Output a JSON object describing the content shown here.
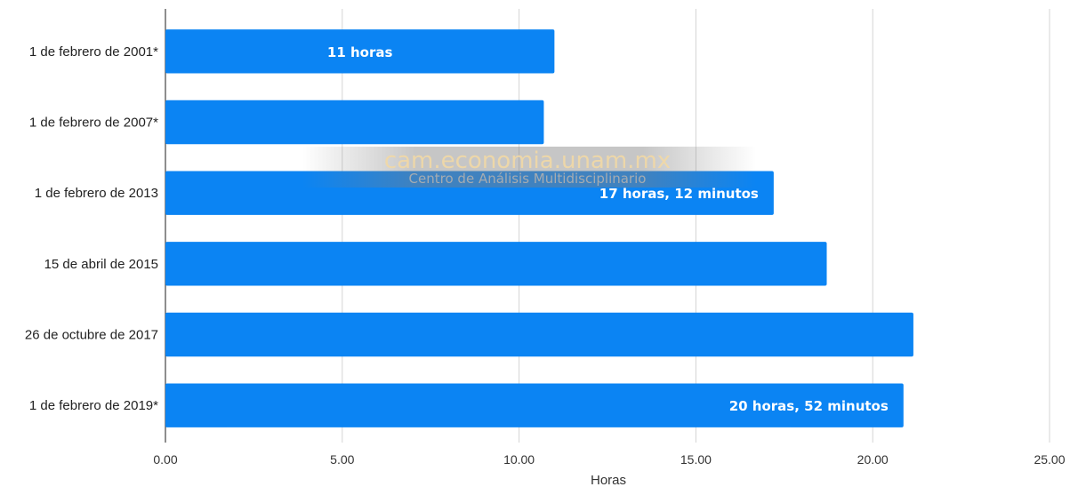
{
  "chart_data": {
    "type": "bar",
    "orientation": "horizontal",
    "categories": [
      "1 de febrero de 2001*",
      "1 de febrero de 2007*",
      "1 de febrero de 2013",
      "15 de abril de 2015",
      "26 de octubre de 2017",
      "1 de febrero de 2019*"
    ],
    "values": [
      11.0,
      10.7,
      17.2,
      18.7,
      21.15,
      20.87
    ],
    "data_labels": [
      "11 horas",
      "",
      "17 horas, 12 minutos",
      "",
      "",
      "20 horas, 52 minutos"
    ],
    "xlabel": "Horas",
    "xlim": [
      0,
      25
    ],
    "x_ticks": [
      "0.00",
      "5.00",
      "10.00",
      "15.00",
      "20.00",
      "25.00"
    ],
    "grid": true,
    "bar_color": "#0b84f3"
  },
  "watermark": {
    "main": "cam.economia.unam.mx",
    "sub": "Centro de Análisis Multidisciplinario"
  }
}
